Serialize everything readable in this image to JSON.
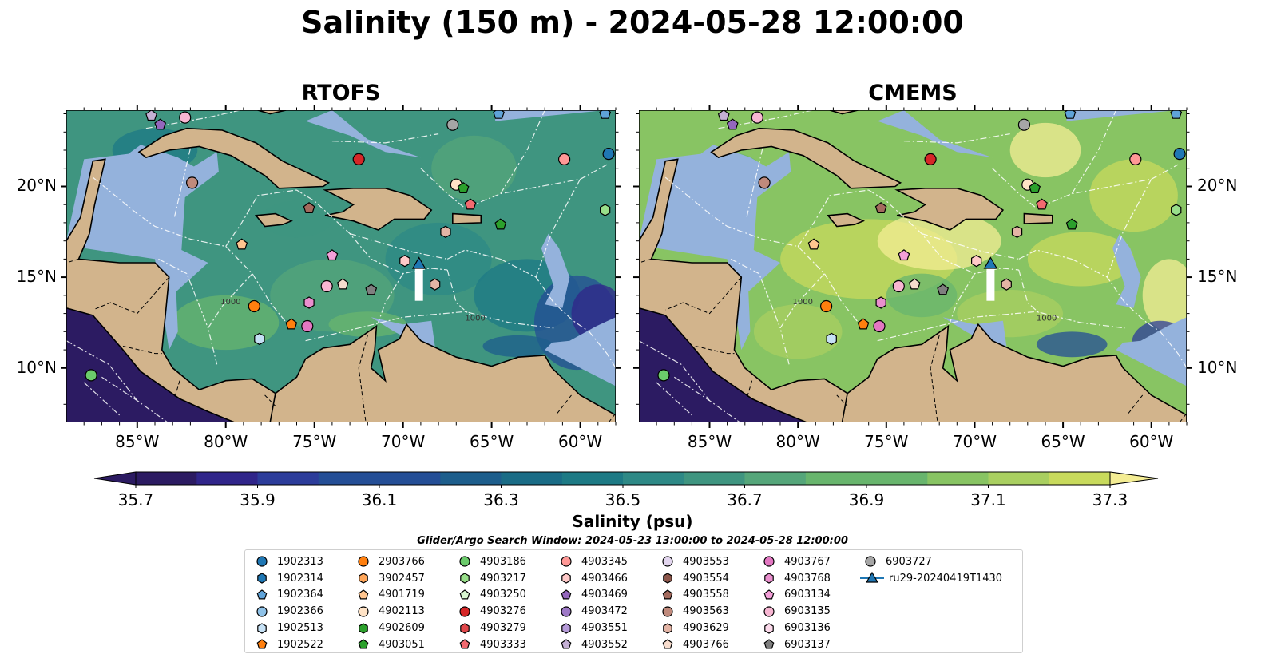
{
  "title": "Salinity (150 m) - 2024-05-28 12:00:00",
  "panels": [
    {
      "title": "RTOFS",
      "model": "rtofs"
    },
    {
      "title": "CMEMS",
      "model": "cmems"
    }
  ],
  "axes": {
    "x_ticks": [
      "85°W",
      "80°W",
      "75°W",
      "70°W",
      "65°W",
      "60°W"
    ],
    "y_ticks": [
      "20°N",
      "15°N",
      "10°N"
    ],
    "lon_range": [
      -89.0,
      -58.0
    ],
    "lat_range": [
      7.0,
      24.2
    ]
  },
  "contour_labels": [
    "1000",
    "1000"
  ],
  "colorbar": {
    "label": "Salinity (psu)",
    "ticks": [
      "35.7",
      "35.9",
      "36.1",
      "36.3",
      "36.5",
      "36.7",
      "36.9",
      "37.1",
      "37.3"
    ],
    "range": [
      35.7,
      37.3
    ],
    "colors": [
      "#2c1b62",
      "#30258a",
      "#2c3c9a",
      "#244e96",
      "#1d5e8c",
      "#1a6c86",
      "#1d7a85",
      "#2e8986",
      "#3f9580",
      "#55a67a",
      "#68b56d",
      "#88c463",
      "#a9cf60",
      "#c8da5c",
      "#f4ed94"
    ]
  },
  "search_window": "Glider/Argo Search Window: 2024-05-23 13:00:00 to 2024-05-28 12:00:00",
  "legend": [
    {
      "label": "1902313",
      "marker": "circle",
      "color": "#1f77b4"
    },
    {
      "label": "1902314",
      "marker": "hexagon",
      "color": "#1f77b4"
    },
    {
      "label": "1902364",
      "marker": "pentagon",
      "color": "#5fa3d9"
    },
    {
      "label": "1902366",
      "marker": "circle",
      "color": "#8fc2e8"
    },
    {
      "label": "1902513",
      "marker": "hexagon",
      "color": "#c6e1f5"
    },
    {
      "label": "1902522",
      "marker": "pentagon",
      "color": "#ff7f0e"
    },
    {
      "label": "2903766",
      "marker": "circle",
      "color": "#ff7f0e"
    },
    {
      "label": "3902457",
      "marker": "hexagon",
      "color": "#ffa65a"
    },
    {
      "label": "4901719",
      "marker": "pentagon",
      "color": "#ffc58f"
    },
    {
      "label": "4902113",
      "marker": "circle",
      "color": "#ffe3c6"
    },
    {
      "label": "4902609",
      "marker": "hexagon",
      "color": "#2ca02c"
    },
    {
      "label": "4903051",
      "marker": "pentagon",
      "color": "#2ca02c"
    },
    {
      "label": "4903186",
      "marker": "circle",
      "color": "#6bcb6b"
    },
    {
      "label": "4903217",
      "marker": "hexagon",
      "color": "#98df8a"
    },
    {
      "label": "4903250",
      "marker": "pentagon",
      "color": "#d8f5d0"
    },
    {
      "label": "4903276",
      "marker": "circle",
      "color": "#d62728"
    },
    {
      "label": "4903279",
      "marker": "hexagon",
      "color": "#e0474a"
    },
    {
      "label": "4903333",
      "marker": "pentagon",
      "color": "#f26a70"
    },
    {
      "label": "4903345",
      "marker": "circle",
      "color": "#ff9896"
    },
    {
      "label": "4903466",
      "marker": "hexagon",
      "color": "#ffc9c8"
    },
    {
      "label": "4903469",
      "marker": "pentagon",
      "color": "#9467bd"
    },
    {
      "label": "4903472",
      "marker": "circle",
      "color": "#9e79c7"
    },
    {
      "label": "4903551",
      "marker": "hexagon",
      "color": "#b59ad8"
    },
    {
      "label": "4903552",
      "marker": "pentagon",
      "color": "#c5b0d5"
    },
    {
      "label": "4903553",
      "marker": "circle",
      "color": "#e2d5ee"
    },
    {
      "label": "4903554",
      "marker": "hexagon",
      "color": "#8c564b"
    },
    {
      "label": "4903558",
      "marker": "pentagon",
      "color": "#a36a5d"
    },
    {
      "label": "4903563",
      "marker": "circle",
      "color": "#c08a7c"
    },
    {
      "label": "4903629",
      "marker": "hexagon",
      "color": "#e3b4a5"
    },
    {
      "label": "4903766",
      "marker": "pentagon",
      "color": "#f7dccd"
    },
    {
      "label": "4903767",
      "marker": "circle",
      "color": "#e377c2"
    },
    {
      "label": "4903768",
      "marker": "hexagon",
      "color": "#ea8fce"
    },
    {
      "label": "6903134",
      "marker": "pentagon",
      "color": "#f39fd8"
    },
    {
      "label": "6903135",
      "marker": "circle",
      "color": "#f7b6d2"
    },
    {
      "label": "6903136",
      "marker": "hexagon",
      "color": "#fbd9ea"
    },
    {
      "label": "6903137",
      "marker": "pentagon",
      "color": "#7f7f7f"
    },
    {
      "label": "6903727",
      "marker": "circle",
      "color": "#a6a6a6"
    },
    {
      "label": "ru29-20240419T1430",
      "marker": "triangle-line",
      "color": "#1f77b4"
    }
  ],
  "float_positions": [
    {
      "id": "1902313",
      "lon": -58.4,
      "lat": 21.8
    },
    {
      "id": "1902364",
      "lon": -64.6,
      "lat": 24.0
    },
    {
      "id": "1902364",
      "lon": -58.6,
      "lat": 24.0
    },
    {
      "id": "1902513",
      "lon": -78.1,
      "lat": 11.6
    },
    {
      "id": "1902522",
      "lon": -76.3,
      "lat": 12.4
    },
    {
      "id": "2903766",
      "lon": -78.4,
      "lat": 13.4
    },
    {
      "id": "4901719",
      "lon": -79.1,
      "lat": 16.8
    },
    {
      "id": "4902113",
      "lon": -67.0,
      "lat": 20.1
    },
    {
      "id": "4903051",
      "lon": -66.6,
      "lat": 19.9
    },
    {
      "id": "4903051",
      "lon": -64.5,
      "lat": 17.9
    },
    {
      "id": "4903186",
      "lon": -87.6,
      "lat": 9.6
    },
    {
      "id": "4903217",
      "lon": -58.6,
      "lat": 18.7
    },
    {
      "id": "4903276",
      "lon": -72.5,
      "lat": 21.5
    },
    {
      "id": "4903333",
      "lon": -66.2,
      "lat": 19.0
    },
    {
      "id": "4903345",
      "lon": -60.9,
      "lat": 21.5
    },
    {
      "id": "4903466",
      "lon": -69.9,
      "lat": 15.9
    },
    {
      "id": "4903469",
      "lon": -83.7,
      "lat": 23.4
    },
    {
      "id": "4903552",
      "lon": -84.2,
      "lat": 23.9
    },
    {
      "id": "4903558",
      "lon": -75.3,
      "lat": 18.8
    },
    {
      "id": "4903563",
      "lon": -81.9,
      "lat": 20.2
    },
    {
      "id": "4903629",
      "lon": -67.6,
      "lat": 17.5
    },
    {
      "id": "4903629",
      "lon": -68.2,
      "lat": 14.6
    },
    {
      "id": "4903766",
      "lon": -73.4,
      "lat": 14.6
    },
    {
      "id": "4903767",
      "lon": -75.4,
      "lat": 12.3
    },
    {
      "id": "4903768",
      "lon": -75.3,
      "lat": 13.6
    },
    {
      "id": "6903134",
      "lon": -74.0,
      "lat": 16.2
    },
    {
      "id": "6903135",
      "lon": -82.3,
      "lat": 23.8
    },
    {
      "id": "6903135",
      "lon": -74.3,
      "lat": 14.5
    },
    {
      "id": "6903137",
      "lon": -71.8,
      "lat": 14.3
    },
    {
      "id": "6903727",
      "lon": -67.2,
      "lat": 23.4
    }
  ],
  "glider": {
    "id": "ru29-20240419T1430",
    "lon": -69.1,
    "lat": 15.6,
    "track_end_lat": 13.7
  }
}
